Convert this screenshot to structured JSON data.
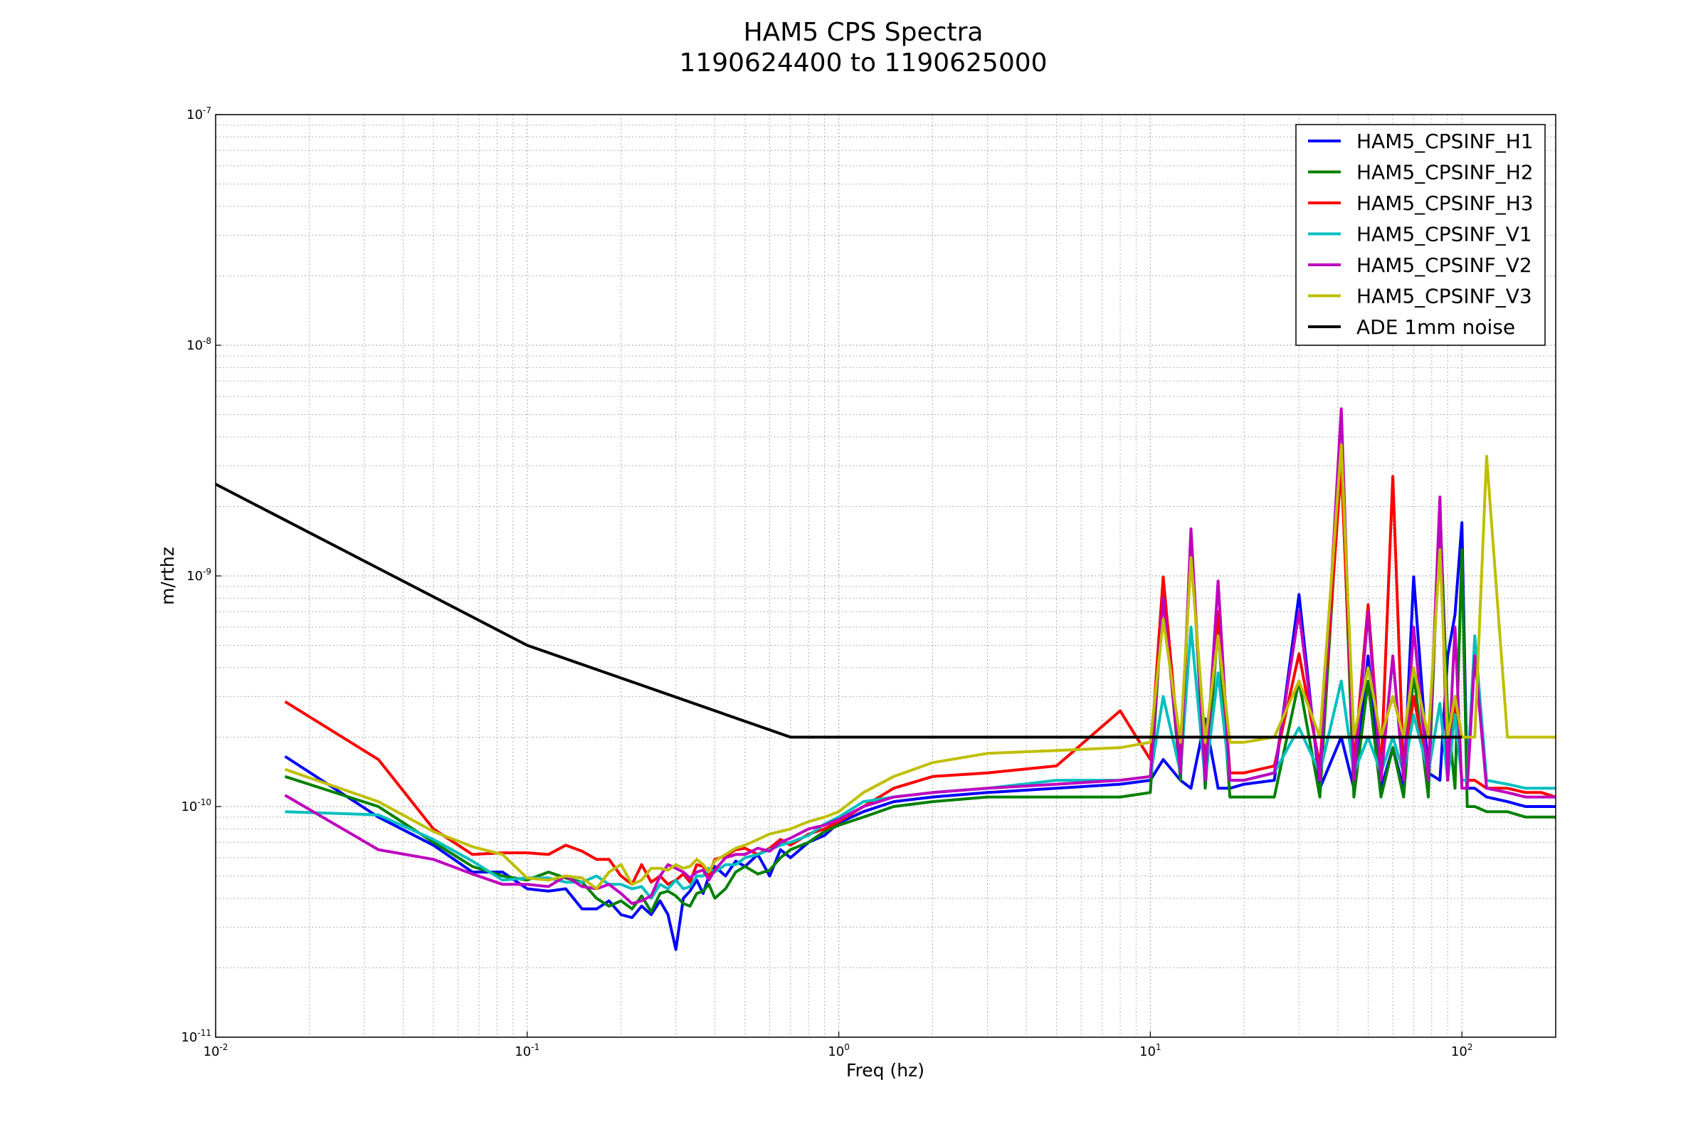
{
  "chart_data": {
    "type": "line",
    "title": "HAM5 CPS Spectra",
    "subtitle": "1190624400 to 1190625000",
    "xlabel": "Freq (hz)",
    "ylabel": "m/rthz",
    "x_scale": "log",
    "y_scale": "log",
    "xlim": [
      0.01,
      200
    ],
    "ylim": [
      1e-11,
      1e-07
    ],
    "x_ticks": [
      {
        "value": 0.01,
        "base": "10",
        "exp": "-2"
      },
      {
        "value": 0.1,
        "base": "10",
        "exp": "-1"
      },
      {
        "value": 1,
        "base": "10",
        "exp": "0"
      },
      {
        "value": 10,
        "base": "10",
        "exp": "1"
      },
      {
        "value": 100,
        "base": "10",
        "exp": "2"
      }
    ],
    "y_ticks": [
      {
        "value": 1e-11,
        "base": "10",
        "exp": "-11"
      },
      {
        "value": 1e-10,
        "base": "10",
        "exp": "-10"
      },
      {
        "value": 1e-09,
        "base": "10",
        "exp": "-9"
      },
      {
        "value": 1e-08,
        "base": "10",
        "exp": "-8"
      },
      {
        "value": 1e-07,
        "base": "10",
        "exp": "-7"
      }
    ],
    "grid": true,
    "legend_position": "top-right",
    "series": [
      {
        "name": "HAM5_CPSINF_H1",
        "color": "#0000ff",
        "x": [
          0.0167,
          0.0333,
          0.05,
          0.0667,
          0.0833,
          0.1,
          0.117,
          0.133,
          0.15,
          0.167,
          0.183,
          0.2,
          0.217,
          0.233,
          0.25,
          0.267,
          0.283,
          0.3,
          0.317,
          0.333,
          0.35,
          0.367,
          0.383,
          0.4,
          0.433,
          0.467,
          0.5,
          0.55,
          0.6,
          0.65,
          0.7,
          0.8,
          0.9,
          1.0,
          1.2,
          1.5,
          2.0,
          3.0,
          5.0,
          8.0,
          10.0,
          11.0,
          12.5,
          13.5,
          15.0,
          16.5,
          18.0,
          20.0,
          25.0,
          30.0,
          35.0,
          41.0,
          45.0,
          50.0,
          55.0,
          60.0,
          65.0,
          70.0,
          78.0,
          85.0,
          90.0,
          95.0,
          100.0,
          104.0,
          110.0,
          120.0,
          140.0,
          160.0,
          180.0,
          200.0
        ],
        "y": [
          1.65e-10,
          9e-11,
          6.8e-11,
          5.2e-11,
          5.2e-11,
          4.4e-11,
          4.3e-11,
          4.4e-11,
          3.6e-11,
          3.6e-11,
          3.9e-11,
          3.4e-11,
          3.3e-11,
          3.7e-11,
          3.4e-11,
          3.9e-11,
          3.4e-11,
          2.4e-11,
          4e-11,
          4.3e-11,
          4.8e-11,
          4.2e-11,
          5e-11,
          5.5e-11,
          5e-11,
          5.8e-11,
          5.5e-11,
          6.2e-11,
          5e-11,
          6.5e-11,
          6e-11,
          7e-11,
          7.5e-11,
          8.5e-11,
          9.5e-11,
          1.05e-10,
          1.1e-10,
          1.15e-10,
          1.2e-10,
          1.25e-10,
          1.3e-10,
          1.6e-10,
          1.3e-10,
          1.2e-10,
          2.4e-10,
          1.2e-10,
          1.2e-10,
          1.25e-10,
          1.3e-10,
          8.3e-10,
          1.2e-10,
          2e-10,
          1.2e-10,
          4.5e-10,
          1.2e-10,
          1.8e-10,
          1.2e-10,
          9.9e-10,
          1.4e-10,
          1.3e-10,
          4.5e-10,
          6.8e-10,
          1.7e-09,
          1.2e-10,
          1.2e-10,
          1.1e-10,
          1.05e-10,
          1e-10,
          1e-10,
          1e-10
        ]
      },
      {
        "name": "HAM5_CPSINF_H2",
        "color": "#008000",
        "x": [
          0.0167,
          0.0333,
          0.05,
          0.0667,
          0.0833,
          0.1,
          0.117,
          0.133,
          0.15,
          0.167,
          0.183,
          0.2,
          0.217,
          0.233,
          0.25,
          0.267,
          0.283,
          0.3,
          0.317,
          0.333,
          0.35,
          0.367,
          0.383,
          0.4,
          0.433,
          0.467,
          0.5,
          0.55,
          0.6,
          0.65,
          0.7,
          0.8,
          0.9,
          1.0,
          1.2,
          1.5,
          2.0,
          3.0,
          5.0,
          8.0,
          10.0,
          11.0,
          12.5,
          13.5,
          15.0,
          16.5,
          18.0,
          20.0,
          25.0,
          30.0,
          35.0,
          41.0,
          45.0,
          50.0,
          55.0,
          60.0,
          65.0,
          70.0,
          78.0,
          85.0,
          90.0,
          95.0,
          100.0,
          104.0,
          110.0,
          120.0,
          140.0,
          160.0,
          180.0,
          200.0
        ],
        "y": [
          1.35e-10,
          1e-10,
          7e-11,
          5.5e-11,
          5e-11,
          4.8e-11,
          5.2e-11,
          4.9e-11,
          4.7e-11,
          4e-11,
          3.7e-11,
          3.9e-11,
          3.6e-11,
          4.1e-11,
          3.5e-11,
          4.2e-11,
          4.3e-11,
          4.1e-11,
          3.8e-11,
          3.7e-11,
          4.2e-11,
          4.3e-11,
          4.6e-11,
          4e-11,
          4.4e-11,
          5.2e-11,
          5.5e-11,
          5.1e-11,
          5.3e-11,
          6e-11,
          6.5e-11,
          7e-11,
          7.8e-11,
          8.3e-11,
          9e-11,
          1e-10,
          1.05e-10,
          1.1e-10,
          1.1e-10,
          1.1e-10,
          1.15e-10,
          8.5e-10,
          1.3e-10,
          1.55e-09,
          1.2e-10,
          6e-10,
          1.1e-10,
          1.1e-10,
          1.1e-10,
          3.5e-10,
          1.1e-10,
          3.5e-09,
          1.1e-10,
          3.5e-10,
          1.1e-10,
          1.8e-10,
          1.1e-10,
          3.8e-10,
          1.1e-10,
          2e-09,
          2.5e-10,
          1.2e-10,
          1.3e-09,
          1e-10,
          1e-10,
          9.5e-11,
          9.5e-11,
          9e-11,
          9e-11,
          9e-11
        ]
      },
      {
        "name": "HAM5_CPSINF_H3",
        "color": "#ff0000",
        "x": [
          0.0167,
          0.0333,
          0.05,
          0.0667,
          0.0833,
          0.1,
          0.117,
          0.133,
          0.15,
          0.167,
          0.183,
          0.2,
          0.217,
          0.233,
          0.25,
          0.267,
          0.283,
          0.3,
          0.317,
          0.333,
          0.35,
          0.367,
          0.383,
          0.4,
          0.433,
          0.467,
          0.5,
          0.55,
          0.6,
          0.65,
          0.7,
          0.8,
          0.9,
          1.0,
          1.2,
          1.5,
          2.0,
          3.0,
          5.0,
          8.0,
          10.0,
          11.0,
          12.5,
          13.5,
          15.0,
          16.5,
          18.0,
          20.0,
          25.0,
          30.0,
          35.0,
          41.0,
          45.0,
          50.0,
          55.0,
          60.0,
          65.0,
          70.0,
          78.0,
          85.0,
          90.0,
          95.0,
          100.0,
          104.0,
          110.0,
          120.0,
          140.0,
          160.0,
          180.0,
          200.0
        ],
        "y": [
          2.85e-10,
          1.6e-10,
          8e-11,
          6.2e-11,
          6.3e-11,
          6.3e-11,
          6.2e-11,
          6.8e-11,
          6.4e-11,
          5.9e-11,
          5.9e-11,
          5e-11,
          4.6e-11,
          5.6e-11,
          4.7e-11,
          5e-11,
          4.6e-11,
          4.8e-11,
          5.1e-11,
          4.7e-11,
          5.6e-11,
          5.5e-11,
          5e-11,
          5.9e-11,
          6.1e-11,
          6.5e-11,
          6.6e-11,
          6.2e-11,
          6.6e-11,
          7.2e-11,
          6.8e-11,
          7.6e-11,
          8e-11,
          8.6e-11,
          1e-10,
          1.2e-10,
          1.35e-10,
          1.4e-10,
          1.5e-10,
          2.6e-10,
          1.6e-10,
          9.9e-10,
          1.5e-10,
          1.4e-09,
          1.5e-10,
          7e-10,
          1.4e-10,
          1.4e-10,
          1.5e-10,
          4.6e-10,
          1.5e-10,
          3e-09,
          1.5e-10,
          7.5e-10,
          1.4e-10,
          2.7e-09,
          1.4e-10,
          3e-10,
          1.4e-10,
          1.9e-09,
          1.3e-10,
          3e-10,
          1.3e-10,
          1.3e-10,
          1.3e-10,
          1.2e-10,
          1.2e-10,
          1.15e-10,
          1.15e-10,
          1.1e-10
        ]
      },
      {
        "name": "HAM5_CPSINF_V1",
        "color": "#00bfbf",
        "x": [
          0.0167,
          0.0333,
          0.05,
          0.0667,
          0.0833,
          0.1,
          0.117,
          0.133,
          0.15,
          0.167,
          0.183,
          0.2,
          0.217,
          0.233,
          0.25,
          0.267,
          0.283,
          0.3,
          0.317,
          0.333,
          0.35,
          0.367,
          0.383,
          0.4,
          0.433,
          0.467,
          0.5,
          0.55,
          0.6,
          0.65,
          0.7,
          0.8,
          0.9,
          1.0,
          1.2,
          1.5,
          2.0,
          3.0,
          5.0,
          8.0,
          10.0,
          11.0,
          12.5,
          13.5,
          15.0,
          16.5,
          18.0,
          20.0,
          25.0,
          30.0,
          35.0,
          41.0,
          45.0,
          50.0,
          55.0,
          60.0,
          65.0,
          70.0,
          78.0,
          85.0,
          90.0,
          95.0,
          100.0,
          104.0,
          110.0,
          120.0,
          140.0,
          160.0,
          180.0,
          200.0
        ],
        "y": [
          9.5e-11,
          9.2e-11,
          7.2e-11,
          5.8e-11,
          4.8e-11,
          4.9e-11,
          4.9e-11,
          4.7e-11,
          4.7e-11,
          5e-11,
          4.6e-11,
          4.6e-11,
          4.4e-11,
          4.5e-11,
          4e-11,
          4.6e-11,
          4.4e-11,
          4.8e-11,
          4.4e-11,
          4.5e-11,
          5e-11,
          5e-11,
          5.4e-11,
          5.2e-11,
          5.6e-11,
          5.6e-11,
          6e-11,
          6.2e-11,
          6.5e-11,
          6.8e-11,
          7e-11,
          7.5e-11,
          8.4e-11,
          9e-11,
          1.05e-10,
          1.1e-10,
          1.15e-10,
          1.2e-10,
          1.3e-10,
          1.3e-10,
          1.35e-10,
          3e-10,
          1.4e-10,
          6e-10,
          1.3e-10,
          3.8e-10,
          1.3e-10,
          1.3e-10,
          1.4e-10,
          2.2e-10,
          1.4e-10,
          3.5e-10,
          1.4e-10,
          2e-10,
          1.4e-10,
          2e-10,
          1.4e-10,
          2.5e-10,
          1.4e-10,
          2.8e-10,
          1.3e-10,
          2.5e-10,
          1.3e-10,
          1.3e-10,
          5.5e-10,
          1.3e-10,
          1.25e-10,
          1.2e-10,
          1.2e-10,
          1.2e-10
        ]
      },
      {
        "name": "HAM5_CPSINF_V2",
        "color": "#bf00bf",
        "x": [
          0.0167,
          0.0333,
          0.05,
          0.0667,
          0.0833,
          0.1,
          0.117,
          0.133,
          0.15,
          0.167,
          0.183,
          0.2,
          0.217,
          0.233,
          0.25,
          0.267,
          0.283,
          0.3,
          0.317,
          0.333,
          0.35,
          0.367,
          0.383,
          0.4,
          0.433,
          0.467,
          0.5,
          0.55,
          0.6,
          0.65,
          0.7,
          0.8,
          0.9,
          1.0,
          1.2,
          1.5,
          2.0,
          3.0,
          5.0,
          8.0,
          10.0,
          11.0,
          12.5,
          13.5,
          15.0,
          16.5,
          18.0,
          20.0,
          25.0,
          30.0,
          35.0,
          41.0,
          45.0,
          50.0,
          55.0,
          60.0,
          65.0,
          70.0,
          78.0,
          85.0,
          90.0,
          95.0,
          100.0,
          104.0,
          110.0,
          120.0,
          140.0,
          160.0,
          180.0,
          200.0
        ],
        "y": [
          1.12e-10,
          6.5e-11,
          5.9e-11,
          5.1e-11,
          4.6e-11,
          4.6e-11,
          4.5e-11,
          5e-11,
          4.5e-11,
          4.4e-11,
          4.6e-11,
          4.2e-11,
          3.8e-11,
          3.9e-11,
          4.1e-11,
          5e-11,
          5.6e-11,
          5.4e-11,
          5.2e-11,
          4.9e-11,
          5.2e-11,
          5.3e-11,
          4.8e-11,
          5.3e-11,
          6e-11,
          6.2e-11,
          6.2e-11,
          6.6e-11,
          6.4e-11,
          7e-11,
          7.3e-11,
          8e-11,
          8.3e-11,
          8.8e-11,
          1e-10,
          1.1e-10,
          1.15e-10,
          1.2e-10,
          1.25e-10,
          1.3e-10,
          1.35e-10,
          8e-10,
          1.4e-10,
          1.6e-09,
          1.3e-10,
          9.5e-10,
          1.3e-10,
          1.3e-10,
          1.4e-10,
          7e-10,
          1.3e-10,
          5.3e-09,
          1.3e-10,
          7e-10,
          1.3e-10,
          4.5e-10,
          1.3e-10,
          6e-10,
          1.3e-10,
          2.2e-09,
          1.3e-10,
          6e-10,
          1.2e-10,
          1.2e-10,
          4.5e-10,
          1.2e-10,
          1.15e-10,
          1.1e-10,
          1.1e-10,
          1.1e-10
        ]
      },
      {
        "name": "HAM5_CPSINF_V3",
        "color": "#bfbf00",
        "x": [
          0.0167,
          0.0333,
          0.05,
          0.0667,
          0.0833,
          0.1,
          0.117,
          0.133,
          0.15,
          0.167,
          0.183,
          0.2,
          0.217,
          0.233,
          0.25,
          0.267,
          0.283,
          0.3,
          0.317,
          0.333,
          0.35,
          0.367,
          0.383,
          0.4,
          0.433,
          0.467,
          0.5,
          0.55,
          0.6,
          0.65,
          0.7,
          0.8,
          0.9,
          1.0,
          1.2,
          1.5,
          2.0,
          3.0,
          5.0,
          8.0,
          10.0,
          11.0,
          12.5,
          13.5,
          15.0,
          16.5,
          18.0,
          20.0,
          25.0,
          30.0,
          35.0,
          41.0,
          45.0,
          50.0,
          55.0,
          60.0,
          65.0,
          70.0,
          78.0,
          85.0,
          90.0,
          95.0,
          100.0,
          104.0,
          110.0,
          120.0,
          140.0,
          160.0,
          180.0,
          200.0
        ],
        "y": [
          1.45e-10,
          1.05e-10,
          7.8e-11,
          6.7e-11,
          6.2e-11,
          4.9e-11,
          4.8e-11,
          5e-11,
          4.9e-11,
          4.4e-11,
          5.2e-11,
          5.6e-11,
          4.6e-11,
          4.8e-11,
          5.4e-11,
          5.4e-11,
          5.3e-11,
          5.6e-11,
          5.4e-11,
          5.5e-11,
          5.9e-11,
          5.6e-11,
          5.2e-11,
          5.8e-11,
          6.2e-11,
          6.6e-11,
          6.8e-11,
          7.2e-11,
          7.6e-11,
          7.8e-11,
          8e-11,
          8.6e-11,
          9e-11,
          9.5e-11,
          1.15e-10,
          1.35e-10,
          1.55e-10,
          1.7e-10,
          1.75e-10,
          1.8e-10,
          1.9e-10,
          6.5e-10,
          1.9e-10,
          1.2e-09,
          1.9e-10,
          5.5e-10,
          1.9e-10,
          1.9e-10,
          2e-10,
          3.5e-10,
          2e-10,
          3.7e-09,
          2e-10,
          4e-10,
          2e-10,
          3e-10,
          2e-10,
          4e-10,
          2e-10,
          1.3e-09,
          2e-10,
          3e-10,
          2e-10,
          2e-10,
          2e-10,
          3.3e-09,
          2e-10,
          2e-10,
          2e-10,
          2e-10
        ]
      },
      {
        "name": "ADE 1mm noise",
        "color": "#000000",
        "x": [
          0.01,
          0.1,
          0.7,
          100
        ],
        "y": [
          2.5e-09,
          5e-10,
          2e-10,
          2e-10
        ]
      }
    ]
  }
}
